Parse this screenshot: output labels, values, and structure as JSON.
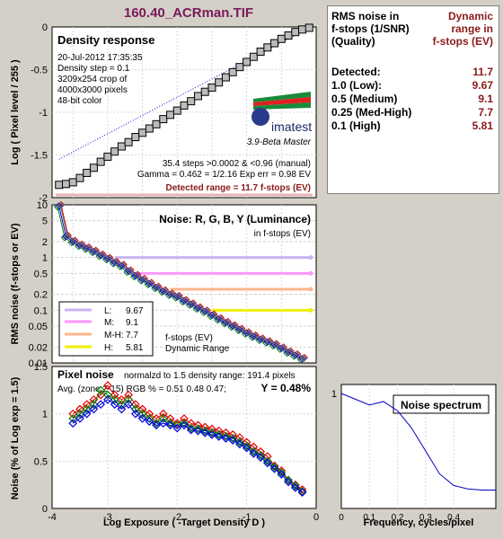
{
  "page_title": "160.40_ACRman.TIF",
  "info_panel": {
    "header_left": [
      "RMS noise in",
      "f-stops (1/SNR)",
      "(Quality)"
    ],
    "header_right": [
      "Dynamic",
      "range in",
      "f-stops (EV)"
    ],
    "rows": [
      {
        "label": "Detected:",
        "value": "11.7"
      },
      {
        "label": "1.0   (Low):",
        "value": "9.67"
      },
      {
        "label": "0.5   (Medium)",
        "value": "9.1"
      },
      {
        "label": "0.25 (Med-High)",
        "value": "7.7"
      },
      {
        "label": "0.1   (High)",
        "value": "5.81"
      }
    ]
  },
  "colors": {
    "red": "#e00000",
    "green": "#008000",
    "blue": "#0000e0",
    "gray": "#707070",
    "purple_line": "#c8b4f0",
    "pink_line": "#ff96ff",
    "orange_line": "#ffb48c",
    "yellow_line": "#f0f000",
    "detected_line": "#e6b4b4",
    "title_color": "#7a1a5a",
    "dark_red": "#8b1a1a"
  },
  "chart_data": [
    {
      "type": "line",
      "title": "Density response",
      "ylabel": "Log ( Pixel level / 255 )",
      "xlim": [
        -3.8,
        0
      ],
      "ylim": [
        -2.0,
        0
      ],
      "y_ticks": [
        "0",
        "-0.5",
        "-1",
        "-1.5",
        "-2"
      ],
      "info_lines": [
        "20-Jul-2012 17:35:35",
        "Density step = 0.1",
        "3209x254 crop of",
        "4000x3000 pixels",
        "48-bit color"
      ],
      "stats_lines": [
        "35.4 steps >0.0002 & <0.96 (manual)",
        "Gamma = 0.462 = 1/2.16  Exp err = 0.98 EV"
      ],
      "detected_label": "Detected range = 11.7 f-stops (EV)",
      "logo_text": "imatest",
      "version_text": "3.9-Beta  Master",
      "series": [
        {
          "x": [
            -3.7,
            -3.6,
            -3.5,
            -3.4,
            -3.3,
            -3.2,
            -3.1,
            -3.0,
            -2.9,
            -2.8,
            -2.7,
            -2.6,
            -2.5,
            -2.4,
            -2.3,
            -2.2,
            -2.1,
            -2.0,
            -1.9,
            -1.8,
            -1.7,
            -1.6,
            -1.5,
            -1.4,
            -1.3,
            -1.2,
            -1.1,
            -1.0,
            -0.9,
            -0.8,
            -0.7,
            -0.6,
            -0.5,
            -0.4,
            -0.3,
            -0.2,
            -0.1
          ],
          "y": [
            -1.85,
            -1.84,
            -1.82,
            -1.77,
            -1.71,
            -1.65,
            -1.58,
            -1.52,
            -1.46,
            -1.4,
            -1.35,
            -1.29,
            -1.24,
            -1.19,
            -1.14,
            -1.08,
            -1.03,
            -0.98,
            -0.92,
            -0.87,
            -0.81,
            -0.76,
            -0.71,
            -0.65,
            -0.59,
            -0.53,
            -0.47,
            -0.41,
            -0.35,
            -0.29,
            -0.24,
            -0.19,
            -0.14,
            -0.1,
            -0.06,
            -0.03,
            -0.01
          ]
        }
      ],
      "fit_line": {
        "x": [
          -3.7,
          -0.1
        ],
        "y": [
          -1.55,
          -0.01
        ]
      }
    },
    {
      "type": "line",
      "title": "Noise: R, G, B, Y (Luminance)",
      "subtitle": "in f-stops (EV)",
      "ylabel": "RMS noise (f-stops or EV)",
      "xlim": [
        -3.8,
        0
      ],
      "ylog": true,
      "ylim": [
        0.01,
        10
      ],
      "y_ticks": [
        "10",
        "5",
        "2",
        "1",
        "0.5",
        "0.2",
        "0.1",
        "0.05",
        "0.02",
        "0.01"
      ],
      "legend": [
        {
          "label": "L:",
          "value": "9.67"
        },
        {
          "label": "M:",
          "value": "9.1"
        },
        {
          "label": "M-H:",
          "value": "7.7"
        },
        {
          "label": "H:",
          "value": "5.81"
        }
      ],
      "legend_caption": [
        "f-stops (EV)",
        "Dynamic Range"
      ],
      "thresholds": [
        1.0,
        0.5,
        0.25,
        0.1
      ],
      "series": [
        {
          "name": "Y",
          "x": [
            -3.7,
            -3.6,
            -3.5,
            -3.4,
            -3.3,
            -3.2,
            -3.1,
            -3.0,
            -2.9,
            -2.8,
            -2.7,
            -2.6,
            -2.5,
            -2.4,
            -2.3,
            -2.2,
            -2.1,
            -2.0,
            -1.9,
            -1.8,
            -1.7,
            -1.6,
            -1.5,
            -1.4,
            -1.3,
            -1.2,
            -1.1,
            -1.0,
            -0.9,
            -0.8,
            -0.7,
            -0.6,
            -0.5,
            -0.4,
            -0.3,
            -0.2
          ],
          "y": [
            9.5,
            2.5,
            2.0,
            1.7,
            1.5,
            1.3,
            1.1,
            0.95,
            0.8,
            0.7,
            0.55,
            0.45,
            0.38,
            0.32,
            0.27,
            0.23,
            0.2,
            0.18,
            0.15,
            0.13,
            0.11,
            0.095,
            0.08,
            0.068,
            0.058,
            0.05,
            0.043,
            0.037,
            0.032,
            0.028,
            0.025,
            0.022,
            0.019,
            0.016,
            0.014,
            0.012
          ]
        }
      ]
    },
    {
      "type": "line",
      "title": "Pixel noise",
      "ylabel": "Noise (% of Log exp = 1.5)",
      "xlabel": "Log Exposure ( -Target Density D )",
      "header_text": "normalzd to 1.5 density range: 191.4 pixels",
      "avg_text": "Avg. (zone 2-15) RGB % = 0.51  0.48  0.47;",
      "y_text": "Y = 0.48%",
      "xlim": [
        -3.8,
        0
      ],
      "ylim": [
        0,
        1.5
      ],
      "x_ticks": [
        "-4",
        "-3",
        "-2",
        "-1",
        "0"
      ],
      "y_ticks": [
        "1.5",
        "1",
        "0.5",
        "0"
      ],
      "series": [
        {
          "name": "R",
          "x": [
            -3.5,
            -3.4,
            -3.3,
            -3.2,
            -3.1,
            -3.0,
            -2.9,
            -2.8,
            -2.7,
            -2.6,
            -2.5,
            -2.4,
            -2.3,
            -2.2,
            -2.1,
            -2.0,
            -1.9,
            -1.8,
            -1.7,
            -1.6,
            -1.5,
            -1.4,
            -1.3,
            -1.2,
            -1.1,
            -1.0,
            -0.9,
            -0.8,
            -0.7,
            -0.6,
            -0.5,
            -0.4,
            -0.3,
            -0.2
          ],
          "y": [
            1.0,
            1.05,
            1.1,
            1.15,
            1.2,
            1.3,
            1.2,
            1.15,
            1.2,
            1.1,
            1.05,
            1.0,
            0.95,
            1.0,
            0.95,
            0.9,
            0.95,
            0.9,
            0.88,
            0.86,
            0.84,
            0.82,
            0.8,
            0.78,
            0.75,
            0.7,
            0.65,
            0.6,
            0.55,
            0.45,
            0.4,
            0.3,
            0.25,
            0.2
          ]
        },
        {
          "name": "G",
          "x": [
            -3.5,
            -3.4,
            -3.3,
            -3.2,
            -3.1,
            -3.0,
            -2.9,
            -2.8,
            -2.7,
            -2.6,
            -2.5,
            -2.4,
            -2.3,
            -2.2,
            -2.1,
            -2.0,
            -1.9,
            -1.8,
            -1.7,
            -1.6,
            -1.5,
            -1.4,
            -1.3,
            -1.2,
            -1.1,
            -1.0,
            -0.9,
            -0.8,
            -0.7,
            -0.6,
            -0.5,
            -0.4,
            -0.3,
            -0.2
          ],
          "y": [
            0.95,
            1.0,
            1.05,
            1.1,
            1.25,
            1.2,
            1.15,
            1.1,
            1.15,
            1.05,
            1.0,
            0.95,
            0.9,
            0.95,
            0.9,
            0.88,
            0.9,
            0.85,
            0.84,
            0.82,
            0.8,
            0.78,
            0.76,
            0.74,
            0.7,
            0.66,
            0.6,
            0.56,
            0.5,
            0.44,
            0.38,
            0.3,
            0.24,
            0.18
          ]
        },
        {
          "name": "B",
          "x": [
            -3.5,
            -3.4,
            -3.3,
            -3.2,
            -3.1,
            -3.0,
            -2.9,
            -2.8,
            -2.7,
            -2.6,
            -2.5,
            -2.4,
            -2.3,
            -2.2,
            -2.1,
            -2.0,
            -1.9,
            -1.8,
            -1.7,
            -1.6,
            -1.5,
            -1.4,
            -1.3,
            -1.2,
            -1.1,
            -1.0,
            -0.9,
            -0.8,
            -0.7,
            -0.6,
            -0.5,
            -0.4,
            -0.3,
            -0.2
          ],
          "y": [
            0.9,
            0.95,
            1.0,
            1.05,
            1.1,
            1.15,
            1.1,
            1.05,
            1.1,
            1.0,
            0.95,
            0.92,
            0.88,
            0.9,
            0.88,
            0.85,
            0.88,
            0.83,
            0.82,
            0.8,
            0.78,
            0.76,
            0.74,
            0.72,
            0.68,
            0.64,
            0.58,
            0.54,
            0.48,
            0.42,
            0.36,
            0.28,
            0.22,
            0.17
          ]
        }
      ]
    },
    {
      "type": "line",
      "title": "Noise spectrum",
      "xlabel": "Frequency, cycles/pixel",
      "xlim": [
        0,
        0.55
      ],
      "ylim": [
        0,
        1
      ],
      "x_ticks": [
        "0",
        "0.1",
        "0.2",
        "0.3",
        "0.4"
      ],
      "y_ticks": [
        "1"
      ],
      "series": [
        {
          "x": [
            0,
            0.05,
            0.1,
            0.15,
            0.2,
            0.25,
            0.3,
            0.35,
            0.4,
            0.45,
            0.5,
            0.55
          ],
          "y": [
            1.0,
            0.95,
            0.9,
            0.93,
            0.85,
            0.7,
            0.5,
            0.3,
            0.2,
            0.17,
            0.16,
            0.16
          ]
        }
      ]
    }
  ]
}
